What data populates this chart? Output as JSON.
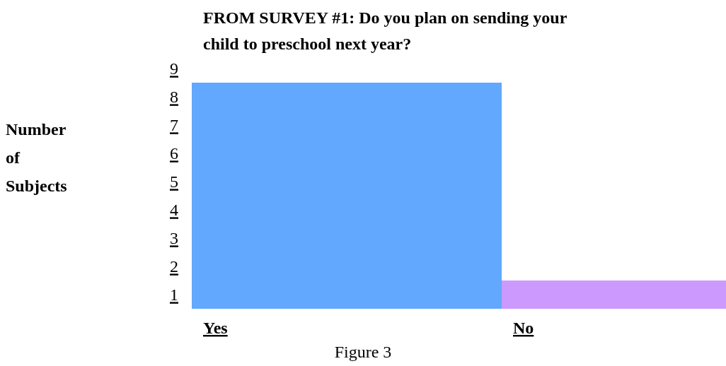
{
  "chart_data": {
    "type": "bar",
    "title": "FROM SURVEY #1: Do you plan on sending your child to preschool next year?",
    "ylabel": "Number of Subjects",
    "categories": [
      "Yes",
      "No"
    ],
    "values": [
      8,
      1
    ],
    "colors": [
      "#62a8fe",
      "#cc99ff"
    ],
    "ylim": [
      0,
      8.5
    ],
    "yticks": [
      {
        "value": 0.5,
        "label": "1"
      },
      {
        "value": 1.5,
        "label": "2"
      },
      {
        "value": 2.5,
        "label": "3"
      },
      {
        "value": 3.5,
        "label": "4"
      },
      {
        "value": 4.5,
        "label": "5"
      },
      {
        "value": 5.5,
        "label": "6"
      },
      {
        "value": 6.5,
        "label": "7"
      },
      {
        "value": 7.5,
        "label": "8"
      },
      {
        "value": 8.5,
        "label": "9"
      }
    ],
    "annotations": [
      "Figure 3"
    ]
  }
}
